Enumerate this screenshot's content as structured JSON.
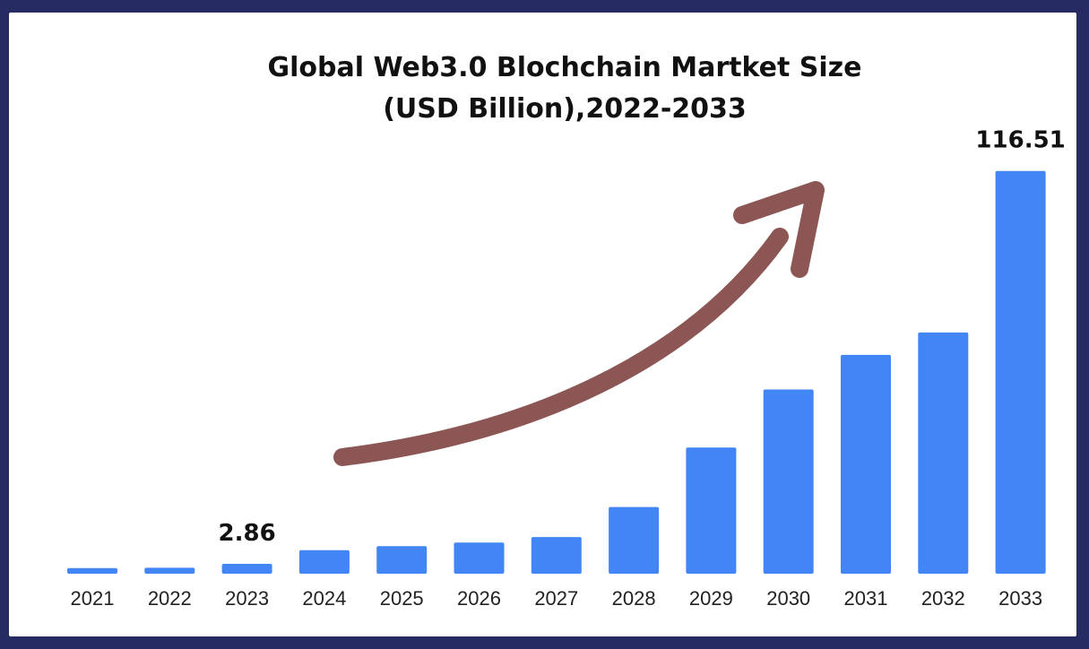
{
  "chart_data": {
    "type": "bar",
    "title_line1": "Global Web3.0 Blochchain Martket Size",
    "title_line2": "(USD Billion),2022-2033",
    "categories": [
      "2021",
      "2022",
      "2023",
      "2024",
      "2025",
      "2026",
      "2027",
      "2028",
      "2029",
      "2030",
      "2031",
      "2032",
      "2033"
    ],
    "values": [
      1.6,
      1.7,
      2.86,
      6.8,
      8.0,
      9.0,
      10.6,
      19.3,
      36.5,
      53.3,
      63.3,
      69.8,
      116.51
    ],
    "data_labels": [
      {
        "category": "2023",
        "text": "2.86"
      },
      {
        "category": "2033",
        "text": "116.51"
      }
    ],
    "ylim": [
      0,
      125
    ],
    "grid": false,
    "legend": "none",
    "annotation": "upward-trend-arrow",
    "colors": {
      "bar": "#4285f4",
      "arrow": "#8b5654",
      "text": "#111111",
      "tick": "#222222"
    }
  }
}
